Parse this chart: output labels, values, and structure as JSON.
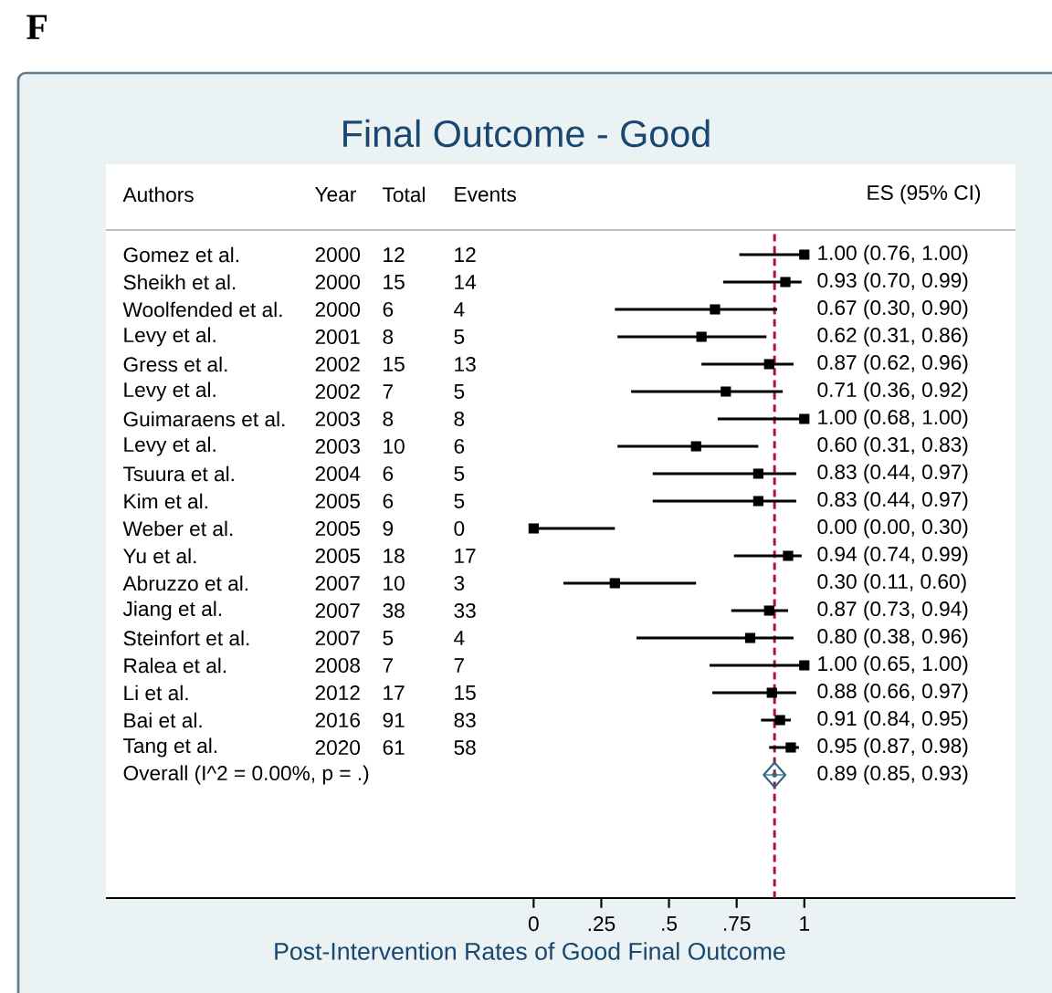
{
  "chart_data": {
    "type": "scatter",
    "orientation": "horizontal",
    "title": "Final Outcome - Good",
    "xlabel": "Post-Intervention Rates of Good Final Outcome",
    "categories": [
      "Gomez et al.",
      "Sheikh et al.",
      "Woolfended et al.",
      "Levy et al.",
      "Gress et al.",
      "Levy et al.",
      "Guimaraens et al.",
      "Levy et al.",
      "Tsuura et al.",
      "Kim et al.",
      "Weber et al.",
      "Yu et al.",
      "Abruzzo et al.",
      "Jiang et al.",
      "Steinfort et al.",
      "Ralea et al.",
      "Li et al.",
      "Bai et al.",
      "Tang et al.",
      "Overall  (I^2 = 0.00%, p = .)"
    ],
    "series": [
      {
        "color": "#000000",
        "marker": "square",
        "values": [
          1.0,
          0.93,
          0.67,
          0.62,
          0.87,
          0.71,
          1.0,
          0.6,
          0.83,
          0.83,
          0.0,
          0.94,
          0.3,
          0.87,
          0.8,
          1.0,
          0.88,
          0.91,
          0.95,
          null
        ],
        "errors": [
          [
            0.76,
            1.0
          ],
          [
            0.7,
            0.99
          ],
          [
            0.3,
            0.9
          ],
          [
            0.31,
            0.86
          ],
          [
            0.62,
            0.96
          ],
          [
            0.36,
            0.92
          ],
          [
            0.68,
            1.0
          ],
          [
            0.31,
            0.83
          ],
          [
            0.44,
            0.97
          ],
          [
            0.44,
            0.97
          ],
          [
            0.0,
            0.3
          ],
          [
            0.74,
            0.99
          ],
          [
            0.11,
            0.6
          ],
          [
            0.73,
            0.94
          ],
          [
            0.38,
            0.96
          ],
          [
            0.65,
            1.0
          ],
          [
            0.66,
            0.97
          ],
          [
            0.84,
            0.95
          ],
          [
            0.87,
            0.98
          ],
          null
        ]
      },
      {
        "color": "#2a6a86",
        "marker": "diamond",
        "values": [
          null,
          null,
          null,
          null,
          null,
          null,
          null,
          null,
          null,
          null,
          null,
          null,
          null,
          null,
          null,
          null,
          null,
          null,
          null,
          0.89
        ],
        "errors": [
          null,
          null,
          null,
          null,
          null,
          null,
          null,
          null,
          null,
          null,
          null,
          null,
          null,
          null,
          null,
          null,
          null,
          null,
          null,
          [
            0.85,
            0.93
          ]
        ]
      }
    ],
    "xlim": [
      -1.58,
      1.78
    ],
    "xticks": [
      {
        "value": 0,
        "label": "0"
      },
      {
        "value": 0.25,
        "label": ".25"
      },
      {
        "value": 0.5,
        "label": ".5"
      },
      {
        "value": 0.75,
        "label": ".75"
      },
      {
        "value": 1,
        "label": "1"
      }
    ],
    "ref_lines": [
      {
        "axis": "x",
        "value": 0.89,
        "color": "#b0102f",
        "line_style": "dashed"
      }
    ],
    "annotations": [
      "F",
      "Authors",
      "Year",
      "Total",
      "Events",
      "ES (95% CI)",
      "2000",
      "12",
      "12",
      "2000",
      "15",
      "14",
      "2000",
      "6",
      "4",
      "2001",
      "8",
      "5",
      "2002",
      "15",
      "13",
      "2002",
      "7",
      "5",
      "2003",
      "8",
      "8",
      "2003",
      "10",
      "6",
      "2004",
      "6",
      "5",
      "2005",
      "6",
      "5",
      "2005",
      "9",
      "0",
      "2005",
      "18",
      "17",
      "2007",
      "10",
      "3",
      "2007",
      "38",
      "33",
      "2007",
      "5",
      "4",
      "2008",
      "7",
      "7",
      "2012",
      "17",
      "15",
      "2016",
      "91",
      "83",
      "2020",
      "61",
      "58",
      "1.00 (0.76, 1.00)",
      "0.93 (0.70, 0.99)",
      "0.67 (0.30, 0.90)",
      "0.62 (0.31, 0.86)",
      "0.87 (0.62, 0.96)",
      "0.71 (0.36, 0.92)",
      "1.00 (0.68, 1.00)",
      "0.60 (0.31, 0.83)",
      "0.83 (0.44, 0.97)",
      "0.83 (0.44, 0.97)",
      "0.00 (0.00, 0.30)",
      "0.94 (0.74, 0.99)",
      "0.30 (0.11, 0.60)",
      "0.87 (0.73, 0.94)",
      "0.80 (0.38, 0.96)",
      "1.00 (0.65, 1.00)",
      "0.88 (0.66, 0.97)",
      "0.91 (0.84, 0.95)",
      "0.95 (0.87, 0.98)",
      "0.89 (0.85, 0.93)"
    ]
  }
}
